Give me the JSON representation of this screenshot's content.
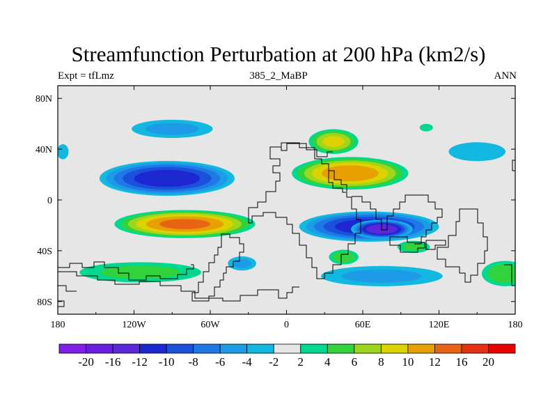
{
  "chart_data": {
    "type": "heatmap",
    "title": "Streamfunction Perturbation at 200 hPa (km2/s)",
    "left_label": "Expt = tfLmz",
    "center_label": "385_2_MaBP",
    "right_label": "ANN",
    "x_range": [
      -180,
      180
    ],
    "y_range": [
      -90,
      90
    ],
    "x_ticks": [
      {
        "value": -180,
        "label": "180"
      },
      {
        "value": -120,
        "label": "120W"
      },
      {
        "value": -60,
        "label": "60W"
      },
      {
        "value": 0,
        "label": "0"
      },
      {
        "value": 60,
        "label": "60E"
      },
      {
        "value": 120,
        "label": "120E"
      },
      {
        "value": 180,
        "label": "180"
      }
    ],
    "y_ticks": [
      {
        "value": 80,
        "label": "80N"
      },
      {
        "value": 40,
        "label": "40N"
      },
      {
        "value": 0,
        "label": "0"
      },
      {
        "value": -40,
        "label": "40S"
      },
      {
        "value": -80,
        "label": "80S"
      }
    ],
    "contour_levels": [
      "-20",
      "-16",
      "-12",
      "-10",
      "-8",
      "-6",
      "-4",
      "-2",
      "2",
      "4",
      "6",
      "8",
      "10",
      "12",
      "16",
      "20"
    ],
    "colors": [
      "#7f1ee6",
      "#6a1ee0",
      "#5a28d8",
      "#1e28d0",
      "#1a50dc",
      "#1e78e6",
      "#1e9be6",
      "#12b8e0",
      "#e6e6e6",
      "#00d890",
      "#32d23c",
      "#9ed61e",
      "#dcd200",
      "#e6a000",
      "#e66414",
      "#e63214",
      "#e60000"
    ],
    "blobs": [
      {
        "lon": -94,
        "lat": 17,
        "rlon": 58,
        "rlat": 15,
        "value": -11
      },
      {
        "lon": -90,
        "lat": 56,
        "rlon": 40,
        "rlat": 9,
        "value": -4
      },
      {
        "lon": -80,
        "lat": -19,
        "rlon": 60,
        "rlat": 12,
        "value": 12
      },
      {
        "lon": 65,
        "lat": -21,
        "rlon": 60,
        "rlat": 13,
        "value": -11
      },
      {
        "lon": 75,
        "lat": -23,
        "rlon": 26,
        "rlat": 8,
        "value": -14
      },
      {
        "lon": 50,
        "lat": 21,
        "rlon": 50,
        "rlat": 14,
        "value": 11
      },
      {
        "lon": 37,
        "lat": 46,
        "rlon": 22,
        "rlat": 11,
        "value": 8
      },
      {
        "lon": 75,
        "lat": -60,
        "rlon": 60,
        "rlat": 10,
        "value": -4
      },
      {
        "lon": -115,
        "lat": -57,
        "rlon": 60,
        "rlat": 10,
        "value": 4
      },
      {
        "lon": 45,
        "lat": -45,
        "rlon": 14,
        "rlat": 7,
        "value": 5
      },
      {
        "lon": -35,
        "lat": -50,
        "rlon": 14,
        "rlat": 7,
        "value": -4
      },
      {
        "lon": 100,
        "lat": -37,
        "rlon": 16,
        "rlat": 6,
        "value": 4
      },
      {
        "lon": 150,
        "lat": 38,
        "rlon": 30,
        "rlat": 10,
        "value": -3
      },
      {
        "lon": 172,
        "lat": -58,
        "rlon": 22,
        "rlat": 12,
        "value": 5
      },
      {
        "lon": -176,
        "lat": 38,
        "rlon": 6,
        "rlat": 8,
        "value": -3
      },
      {
        "lon": 110,
        "lat": 57,
        "rlon": 7,
        "rlat": 4,
        "value": 3
      }
    ]
  }
}
